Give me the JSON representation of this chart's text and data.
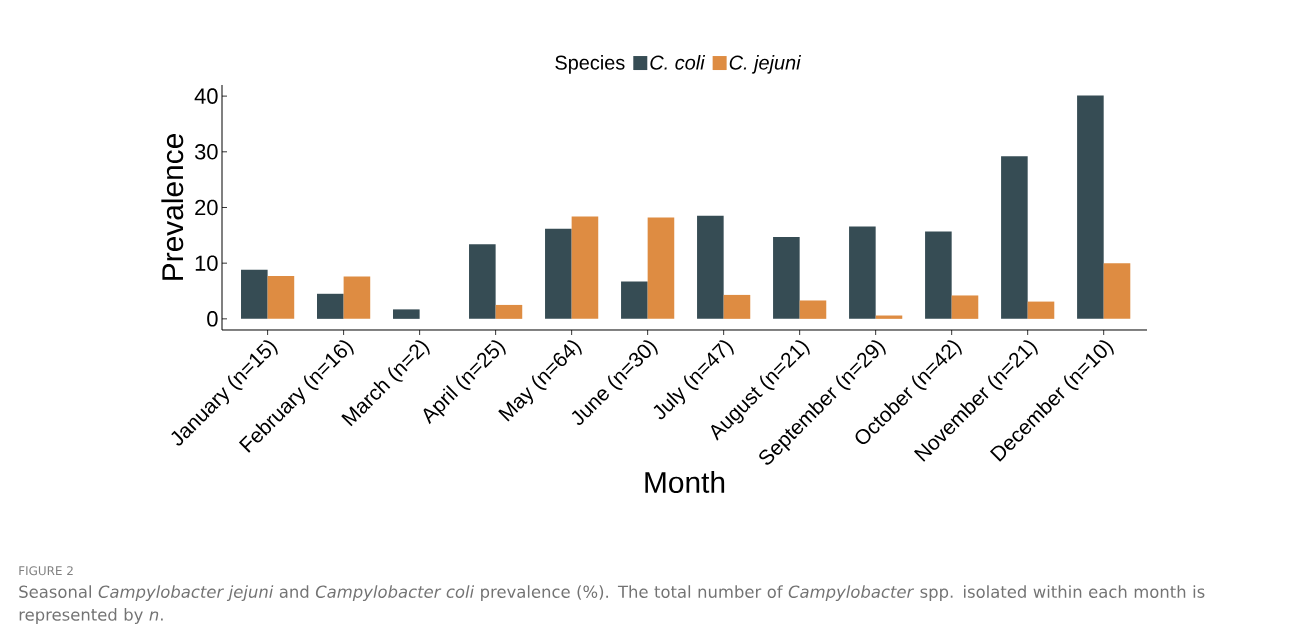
{
  "chart_data": {
    "type": "bar",
    "xlabel": "Month",
    "ylabel": "Prevalence",
    "legend_title": "Species",
    "categories": [
      "January (n=15)",
      "February (n=16)",
      "March (n=2)",
      "April (n=25)",
      "May (n=64)",
      "June (n=30)",
      "July (n=47)",
      "August (n=21)",
      "September (n=29)",
      "October (n=42)",
      "November (n=21)",
      "December (n=10)"
    ],
    "series": [
      {
        "name": "C. coli",
        "color": "#364c54",
        "values": [
          8.8,
          4.5,
          1.7,
          13.4,
          16.2,
          6.7,
          18.5,
          14.7,
          16.6,
          15.7,
          29.2,
          40.1
        ]
      },
      {
        "name": "C. jejuni",
        "color": "#de8c42",
        "values": [
          7.7,
          7.6,
          0,
          2.5,
          18.4,
          18.2,
          4.3,
          3.3,
          0.6,
          4.2,
          3.1,
          10.0
        ]
      }
    ],
    "ylim": [
      -2,
      42
    ],
    "yticks": [
      0,
      10,
      20,
      30,
      40
    ],
    "grid": false,
    "legend": "top",
    "annotations": [
      "FIGURE 2",
      "Seasonal *Campylobacter jejuni* and *Campylobacter coli* prevalence (%). The total number of *Campylobacter* spp. isolated within each month is represented by *n*."
    ]
  }
}
